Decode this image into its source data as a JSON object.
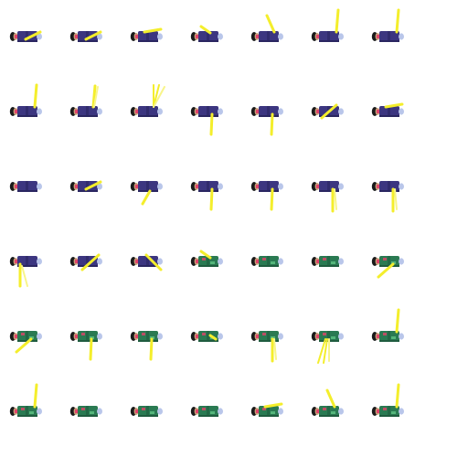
{
  "palette": {
    "robe_purple": "#3c3680",
    "robe_dark": "#2a2660",
    "robe_green": "#2a7a52",
    "robe_green_dark": "#1f5c3f",
    "hair": "#1a1a1a",
    "skin": "#c9a07a",
    "hand": "#b9c6ea",
    "accent": "#e0456a",
    "sword_yellow": "#f4ee2c",
    "sword_yellow_pale": "#f8f58a",
    "background": "#ffffff"
  },
  "sprite_sheet": {
    "columns": 7,
    "rows": 6,
    "frames": [
      {
        "robe": "purple",
        "sword": "low",
        "empty": false
      },
      {
        "robe": "purple",
        "sword": "low",
        "empty": false
      },
      {
        "robe": "purple",
        "sword": "flat",
        "empty": false
      },
      {
        "robe": "purple",
        "sword": "up-short",
        "empty": false
      },
      {
        "robe": "purple",
        "sword": "up-angled",
        "empty": false
      },
      {
        "robe": "purple",
        "sword": "up",
        "empty": false
      },
      {
        "robe": "purple",
        "sword": "up",
        "empty": false
      },
      {
        "robe": "purple",
        "sword": "up",
        "empty": false
      },
      {
        "robe": "purple",
        "sword": "up-blur",
        "empty": false
      },
      {
        "robe": "purple",
        "sword": "up-fan",
        "empty": false
      },
      {
        "robe": "purple",
        "sword": "down",
        "empty": false
      },
      {
        "robe": "purple",
        "sword": "down",
        "empty": false
      },
      {
        "robe": "purple",
        "sword": "angle-up",
        "empty": false
      },
      {
        "robe": "purple",
        "sword": "flat",
        "empty": false
      },
      {
        "robe": "purple",
        "sword": "hidden",
        "empty": false
      },
      {
        "robe": "purple",
        "sword": "low",
        "empty": false
      },
      {
        "robe": "purple",
        "sword": "down-angled",
        "empty": false
      },
      {
        "robe": "purple",
        "sword": "down",
        "empty": false
      },
      {
        "robe": "purple",
        "sword": "down",
        "empty": false
      },
      {
        "robe": "purple",
        "sword": "down-blur",
        "empty": false
      },
      {
        "robe": "purple",
        "sword": "down-blur",
        "empty": false
      },
      {
        "robe": "purple",
        "sword": "down-arc",
        "empty": false
      },
      {
        "robe": "purple",
        "sword": "diag-up",
        "empty": false
      },
      {
        "robe": "purple",
        "sword": "diag-down",
        "empty": false
      },
      {
        "robe": "green",
        "sword": "up-short",
        "empty": false
      },
      {
        "robe": "green",
        "sword": "none",
        "empty": false
      },
      {
        "robe": "green",
        "sword": "none",
        "empty": false
      },
      {
        "robe": "green",
        "sword": "diag-low",
        "empty": false
      },
      {
        "robe": "green",
        "sword": "diag-low",
        "empty": false
      },
      {
        "robe": "green",
        "sword": "down",
        "empty": false
      },
      {
        "robe": "green",
        "sword": "down",
        "empty": false
      },
      {
        "robe": "green",
        "sword": "short",
        "empty": false
      },
      {
        "robe": "green",
        "sword": "down-blur",
        "empty": false
      },
      {
        "robe": "green",
        "sword": "down-fan",
        "empty": false
      },
      {
        "robe": "green",
        "sword": "up",
        "empty": false
      },
      {
        "robe": "green",
        "sword": "up",
        "empty": false
      },
      {
        "robe": "green",
        "sword": "none",
        "empty": false
      },
      {
        "robe": "green",
        "sword": "none",
        "empty": false
      },
      {
        "robe": "green",
        "sword": "none",
        "empty": false
      },
      {
        "robe": "green",
        "sword": "flat",
        "empty": false
      },
      {
        "robe": "green",
        "sword": "up-angled",
        "empty": false
      },
      {
        "robe": "green",
        "sword": "up",
        "empty": false
      }
    ]
  }
}
